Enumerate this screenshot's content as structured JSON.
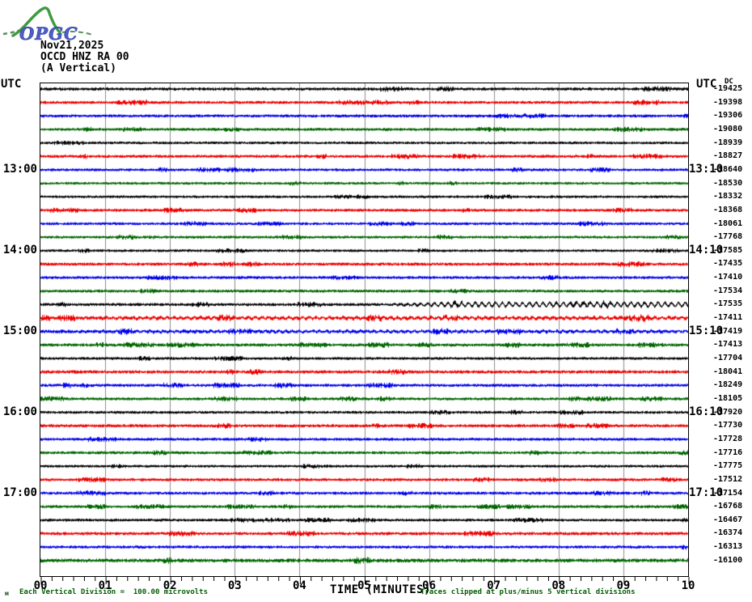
{
  "header": {
    "logo_text": "OPGC",
    "date": "Nov21,2025",
    "station": "OCCD HNZ RA 00",
    "component": "(A Vertical)"
  },
  "axes": {
    "left_unit": "UTC",
    "right_unit": "UTC",
    "dc_label": "DC",
    "x_title": "TIME (MINUTES)",
    "x_ticks": [
      "00",
      "01",
      "02",
      "03",
      "04",
      "05",
      "06",
      "07",
      "08",
      "09",
      "10"
    ],
    "left_hour_labels": [
      {
        "text": "13:00",
        "row": 6
      },
      {
        "text": "14:00",
        "row": 12
      },
      {
        "text": "15:00",
        "row": 18
      },
      {
        "text": "16:00",
        "row": 24
      },
      {
        "text": "17:00",
        "row": 30
      }
    ],
    "right_hour_labels": [
      {
        "text": "13:10",
        "row": 6
      },
      {
        "text": "14:10",
        "row": 12
      },
      {
        "text": "15:10",
        "row": 18
      },
      {
        "text": "16:10",
        "row": 24
      },
      {
        "text": "17:10",
        "row": 30
      }
    ]
  },
  "footer": {
    "division_note": "Each Vertical Division =  100.00 microvolts",
    "clip_note": "Traces clipped at plus/minus 5 vertical divisions",
    "corner_mark": "м"
  },
  "chart_data": {
    "type": "line",
    "subtype": "helicorder-seismogram",
    "title": "OCCD HNZ RA 00 (A Vertical), Nov21,2025",
    "xlabel": "TIME (MINUTES)",
    "x_range_minutes": [
      0,
      10
    ],
    "x_major_tick_step_minutes": 1,
    "x_minor_ticks_per_major": 6,
    "minutes_per_trace": 10,
    "grid": "vertical gray line at each minute",
    "legend_position": "none",
    "vertical_division_microvolts": 100.0,
    "clip_divisions": 5,
    "trace_colors_cycle": [
      "#000000",
      "#ee0000",
      "#0000ee",
      "#006600"
    ],
    "grid_color": "#8c8c8c",
    "traces": [
      {
        "dc": -19425,
        "amp": 1.6,
        "osc": 0,
        "osc_from": 0
      },
      {
        "dc": -19398,
        "amp": 1.5,
        "osc": 0,
        "osc_from": 0
      },
      {
        "dc": -19306,
        "amp": 1.5,
        "osc": 0,
        "osc_from": 0
      },
      {
        "dc": -19080,
        "amp": 1.5,
        "osc": 0,
        "osc_from": 0
      },
      {
        "dc": -18939,
        "amp": 1.3,
        "osc": 0,
        "osc_from": 0
      },
      {
        "dc": -18827,
        "amp": 1.5,
        "osc": 0,
        "osc_from": 0
      },
      {
        "dc": -18640,
        "amp": 1.4,
        "osc": 0,
        "osc_from": 0
      },
      {
        "dc": -18530,
        "amp": 1.3,
        "osc": 0,
        "osc_from": 0
      },
      {
        "dc": -18332,
        "amp": 1.3,
        "osc": 0,
        "osc_from": 0
      },
      {
        "dc": -18368,
        "amp": 1.5,
        "osc": 0,
        "osc_from": 0
      },
      {
        "dc": -18061,
        "amp": 1.4,
        "osc": 0,
        "osc_from": 0
      },
      {
        "dc": -17768,
        "amp": 1.4,
        "osc": 0,
        "osc_from": 0
      },
      {
        "dc": -17585,
        "amp": 1.3,
        "osc": 0,
        "osc_from": 0
      },
      {
        "dc": -17435,
        "amp": 1.6,
        "osc": 0,
        "osc_from": 0
      },
      {
        "dc": -17410,
        "amp": 1.5,
        "osc": 0,
        "osc_from": 0
      },
      {
        "dc": -17534,
        "amp": 1.5,
        "osc": 0,
        "osc_from": 0
      },
      {
        "dc": -17535,
        "amp": 1.5,
        "osc": 2.4,
        "osc_from": 0.52
      },
      {
        "dc": -17411,
        "amp": 1.9,
        "osc": 0.9,
        "osc_from": 0
      },
      {
        "dc": -17419,
        "amp": 1.8,
        "osc": 0.7,
        "osc_from": 0
      },
      {
        "dc": -17413,
        "amp": 1.6,
        "osc": 0,
        "osc_from": 0
      },
      {
        "dc": -17704,
        "amp": 1.4,
        "osc": 0,
        "osc_from": 0
      },
      {
        "dc": -18041,
        "amp": 1.7,
        "osc": 0,
        "osc_from": 0
      },
      {
        "dc": -18249,
        "amp": 1.6,
        "osc": 0,
        "osc_from": 0
      },
      {
        "dc": -18105,
        "amp": 1.5,
        "osc": 0,
        "osc_from": 0
      },
      {
        "dc": -17920,
        "amp": 1.4,
        "osc": 0,
        "osc_from": 0
      },
      {
        "dc": -17730,
        "amp": 1.6,
        "osc": 0,
        "osc_from": 0
      },
      {
        "dc": -17728,
        "amp": 1.5,
        "osc": 0,
        "osc_from": 0
      },
      {
        "dc": -17716,
        "amp": 1.5,
        "osc": 0,
        "osc_from": 0
      },
      {
        "dc": -17775,
        "amp": 1.3,
        "osc": 0,
        "osc_from": 0
      },
      {
        "dc": -17512,
        "amp": 1.5,
        "osc": 0,
        "osc_from": 0
      },
      {
        "dc": -17154,
        "amp": 1.5,
        "osc": 0,
        "osc_from": 0
      },
      {
        "dc": -16768,
        "amp": 1.5,
        "osc": 0,
        "osc_from": 0
      },
      {
        "dc": -16467,
        "amp": 1.4,
        "osc": 0,
        "osc_from": 0
      },
      {
        "dc": -16374,
        "amp": 1.6,
        "osc": 0,
        "osc_from": 0
      },
      {
        "dc": -16313,
        "amp": 1.5,
        "osc": 0,
        "osc_from": 0
      },
      {
        "dc": -16100,
        "amp": 2.0,
        "osc": 0,
        "osc_from": 0
      }
    ]
  }
}
